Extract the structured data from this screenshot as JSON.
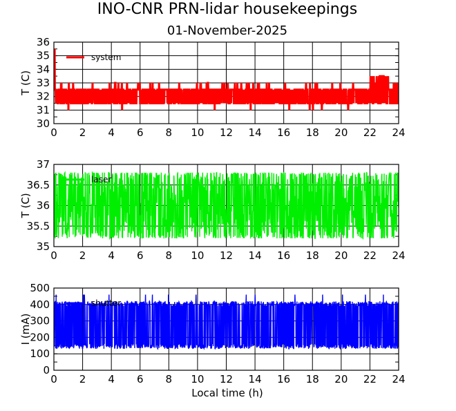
{
  "title": "INO-CNR PRN-lidar housekeepings",
  "subtitle": "01-November-2025",
  "xlabel": "Local time (h)",
  "chart_data": [
    {
      "type": "line",
      "ylabel": "T (C)",
      "xlim": [
        0,
        24
      ],
      "ylim": [
        30,
        36
      ],
      "xticks": [
        "0",
        "2",
        "4",
        "6",
        "8",
        "10",
        "12",
        "14",
        "16",
        "18",
        "20",
        "22",
        "24"
      ],
      "yticks": [
        "30",
        "31",
        "32",
        "33",
        "34",
        "35",
        "36"
      ],
      "grid": true,
      "legend_position": "top-left",
      "series": [
        {
          "name": "system",
          "color": "#ff0000",
          "base": 32.0,
          "amp": 0.5,
          "spike_up": 33.0,
          "spike_down": 31.0
        }
      ],
      "features": {
        "start_spike": [
          34,
          35.5
        ],
        "late_high_hours": [
          22,
          23.3
        ],
        "late_high_value": 33.5
      }
    },
    {
      "type": "line",
      "ylabel": "T (C)",
      "xlim": [
        0,
        24
      ],
      "ylim": [
        35,
        37
      ],
      "xticks": [
        "0",
        "2",
        "4",
        "6",
        "8",
        "10",
        "12",
        "14",
        "16",
        "18",
        "20",
        "22",
        "24"
      ],
      "yticks": [
        "35",
        "35.5",
        "36",
        "36.5",
        "37"
      ],
      "grid": true,
      "legend_position": "top-left",
      "series": [
        {
          "name": "laser",
          "color": "#00ee00",
          "base": 36.0,
          "min": 35.2,
          "max": 36.8
        }
      ]
    },
    {
      "type": "line",
      "ylabel": "I (mA)",
      "xlim": [
        0,
        24
      ],
      "ylim": [
        0,
        500
      ],
      "xticks": [
        "0",
        "2",
        "4",
        "6",
        "8",
        "10",
        "12",
        "14",
        "16",
        "18",
        "20",
        "22",
        "24"
      ],
      "yticks": [
        "0",
        "100",
        "200",
        "300",
        "400",
        "500"
      ],
      "grid": true,
      "legend_position": "top-left",
      "series": [
        {
          "name": "shutter",
          "color": "#0000ff",
          "min": 130,
          "max": 420,
          "peak": 460
        }
      ]
    }
  ]
}
